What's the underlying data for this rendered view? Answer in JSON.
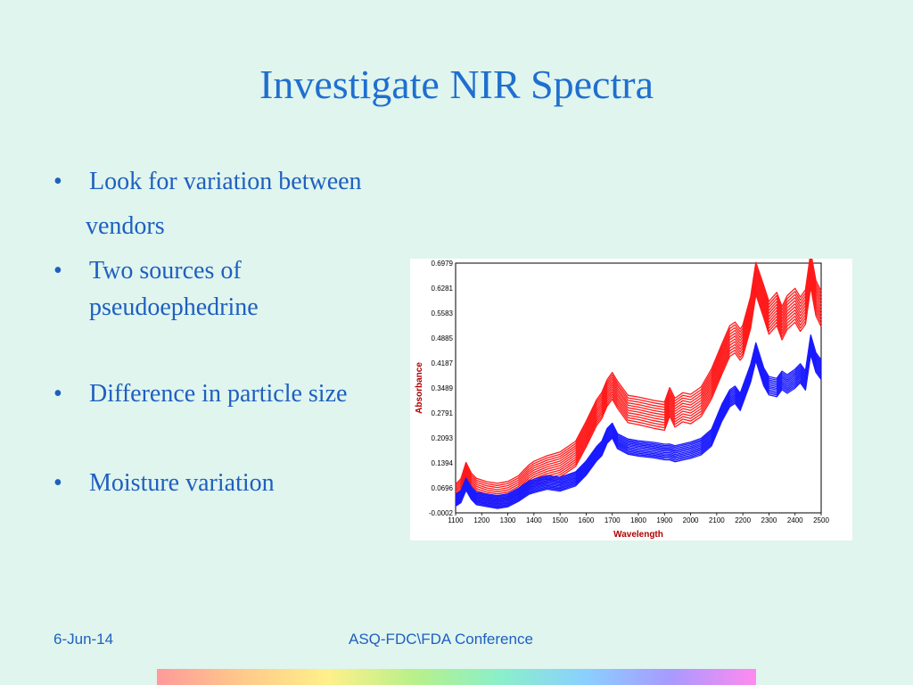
{
  "slide": {
    "title": "Investigate NIR Spectra",
    "bullets": [
      {
        "line1": "Look for variation between",
        "line2": "vendors"
      },
      {
        "line1": "Two sources of",
        "line2": "pseudoephedrine"
      },
      {
        "line1": "Difference in particle size"
      },
      {
        "line1": "Moisture variation"
      }
    ],
    "bullet_glyph": "•"
  },
  "footer": {
    "date": "6-Jun-14",
    "conference": "ASQ-FDC\\FDA Conference"
  },
  "colors": {
    "title": "#1f6fd0",
    "text": "#1f5fc0",
    "background": "#dff5ee",
    "axis_label": "#b00000",
    "series_red": "#ff1a1a",
    "series_blue": "#1a1aff"
  },
  "chart_data": {
    "type": "line",
    "xlabel": "Wavelength",
    "ylabel": "Absorbance",
    "xlim": [
      1100,
      2500
    ],
    "ylim": [
      -0.0002,
      0.6979
    ],
    "x_ticks": [
      1100,
      1200,
      1300,
      1400,
      1500,
      1600,
      1700,
      1800,
      1900,
      2000,
      2100,
      2200,
      2300,
      2400,
      2500
    ],
    "y_ticks": [
      "-0.0002",
      "0.0696",
      "0.1394",
      "0.2093",
      "0.2791",
      "0.3489",
      "0.4187",
      "0.4885",
      "0.5583",
      "0.6281",
      "0.6979"
    ],
    "x": [
      1100,
      1120,
      1140,
      1160,
      1180,
      1220,
      1260,
      1300,
      1340,
      1380,
      1400,
      1450,
      1500,
      1560,
      1600,
      1640,
      1660,
      1680,
      1700,
      1720,
      1760,
      1800,
      1860,
      1900,
      1920,
      1940,
      1970,
      2000,
      2040,
      2080,
      2120,
      2150,
      2170,
      2190,
      2200,
      2230,
      2250,
      2280,
      2300,
      2330,
      2350,
      2370,
      2400,
      2420,
      2440,
      2460,
      2480,
      2500
    ],
    "series": [
      {
        "color": "#ff1a1a",
        "count": 12,
        "spread": 0.009,
        "values": [
          0.05,
          0.065,
          0.11,
          0.08,
          0.065,
          0.055,
          0.05,
          0.055,
          0.07,
          0.1,
          0.11,
          0.125,
          0.135,
          0.165,
          0.22,
          0.28,
          0.3,
          0.335,
          0.355,
          0.33,
          0.29,
          0.285,
          0.275,
          0.27,
          0.31,
          0.28,
          0.295,
          0.29,
          0.31,
          0.36,
          0.43,
          0.48,
          0.49,
          0.47,
          0.48,
          0.56,
          0.655,
          0.59,
          0.545,
          0.57,
          0.53,
          0.56,
          0.58,
          0.555,
          0.575,
          0.68,
          0.6,
          0.57
        ]
      },
      {
        "color": "#1a1aff",
        "count": 12,
        "spread": 0.005,
        "values": [
          0.035,
          0.045,
          0.08,
          0.055,
          0.04,
          0.035,
          0.03,
          0.035,
          0.05,
          0.07,
          0.075,
          0.085,
          0.08,
          0.095,
          0.125,
          0.165,
          0.18,
          0.215,
          0.23,
          0.2,
          0.185,
          0.18,
          0.175,
          0.17,
          0.17,
          0.165,
          0.17,
          0.175,
          0.185,
          0.21,
          0.28,
          0.32,
          0.33,
          0.31,
          0.33,
          0.39,
          0.45,
          0.38,
          0.355,
          0.35,
          0.37,
          0.36,
          0.375,
          0.39,
          0.37,
          0.47,
          0.42,
          0.4
        ]
      }
    ]
  }
}
